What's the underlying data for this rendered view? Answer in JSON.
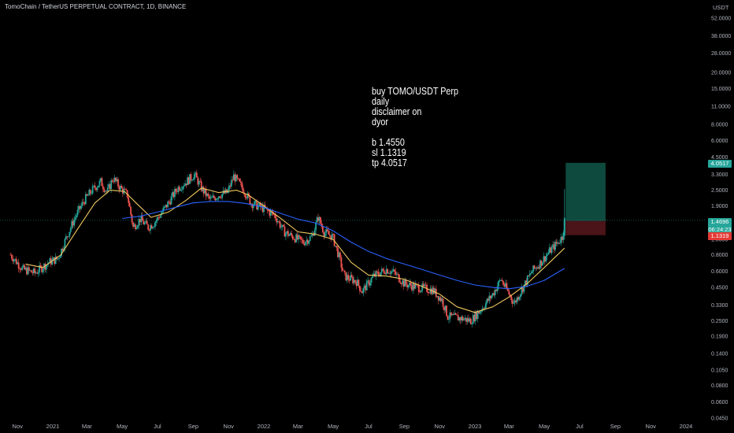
{
  "header": {
    "title": "TomoChain / TetherUS PERPETUAL CONTRACT, 1D, BINANCE"
  },
  "note": {
    "lines": [
      "buy TOMO/USDT Perp",
      "daily",
      "disclaimer on",
      "dyor",
      "",
      "b 1.4550",
      "sl 1.1319",
      "tp 4.0517"
    ]
  },
  "price_tags": {
    "tp": "4.0517",
    "last": "1.4696",
    "countdown": "06:24:23",
    "sl": "1.1319"
  },
  "colors": {
    "background": "#000000",
    "up_candle": "#26a69a",
    "down_candle": "#ef5350",
    "ma_fast": "#f0c75e",
    "ma_slow": "#2962ff",
    "profit_zone": "#0e4a3e",
    "loss_zone": "#4a1418",
    "last_price_line": "#26a69a"
  },
  "chart_data": {
    "type": "candlestick",
    "title": "TomoChain / TetherUS PERPETUAL CONTRACT, 1D, BINANCE",
    "ylabel": "USDT",
    "yscale": "log",
    "ylim": [
      0.04,
      60
    ],
    "y_ticks": [
      "52.0000",
      "38.0000",
      "28.0000",
      "20.0000",
      "15.0000",
      "11.0000",
      "8.0000",
      "6.0000",
      "4.5000",
      "3.3000",
      "2.5000",
      "1.9000",
      "1.4000",
      "1.0500",
      "0.8000",
      "0.6000",
      "0.4500",
      "0.3300",
      "0.2500",
      "0.1900",
      "0.1400",
      "0.1050",
      "0.0800",
      "0.0600",
      "0.0450"
    ],
    "x_ticks": [
      "Nov",
      "2021",
      "Mar",
      "May",
      "Jul",
      "Sep",
      "Nov",
      "2022",
      "Mar",
      "May",
      "Jul",
      "Sep",
      "Nov",
      "2023",
      "Mar",
      "May",
      "Jul",
      "Sep",
      "Nov",
      "2024"
    ],
    "x_tick_dates": [
      "2020-11-01",
      "2021-01-01",
      "2021-03-01",
      "2021-05-01",
      "2021-07-01",
      "2021-09-01",
      "2021-11-01",
      "2022-01-01",
      "2022-03-01",
      "2022-05-01",
      "2022-07-01",
      "2022-09-01",
      "2022-11-01",
      "2023-01-01",
      "2023-03-01",
      "2023-05-01",
      "2023-07-01",
      "2023-09-01",
      "2023-11-01",
      "2024-01-01"
    ],
    "price_path": [
      [
        "2020-10-20",
        0.8
      ],
      [
        "2020-11-10",
        0.62
      ],
      [
        "2020-12-01",
        0.58
      ],
      [
        "2020-12-25",
        0.7
      ],
      [
        "2021-01-10",
        0.75
      ],
      [
        "2021-01-25",
        1.1
      ],
      [
        "2021-02-10",
        1.6
      ],
      [
        "2021-02-25",
        2.1
      ],
      [
        "2021-03-10",
        2.5
      ],
      [
        "2021-03-25",
        2.9
      ],
      [
        "2021-04-05",
        2.4
      ],
      [
        "2021-04-15",
        3.1
      ],
      [
        "2021-04-28",
        2.6
      ],
      [
        "2021-05-10",
        2.3
      ],
      [
        "2021-05-20",
        1.3
      ],
      [
        "2021-06-01",
        1.5
      ],
      [
        "2021-06-15",
        1.3
      ],
      [
        "2021-06-25",
        1.4
      ],
      [
        "2021-07-05",
        1.6
      ],
      [
        "2021-07-20",
        2.0
      ],
      [
        "2021-08-05",
        2.6
      ],
      [
        "2021-08-20",
        2.9
      ],
      [
        "2021-09-03",
        3.3
      ],
      [
        "2021-09-15",
        2.6
      ],
      [
        "2021-09-30",
        2.1
      ],
      [
        "2021-10-15",
        2.3
      ],
      [
        "2021-10-30",
        2.4
      ],
      [
        "2021-11-10",
        3.2
      ],
      [
        "2021-11-25",
        2.6
      ],
      [
        "2021-12-10",
        2.0
      ],
      [
        "2022-01-01",
        1.8
      ],
      [
        "2022-01-20",
        1.6
      ],
      [
        "2022-02-05",
        1.2
      ],
      [
        "2022-02-20",
        1.1
      ],
      [
        "2022-03-10",
        1.0
      ],
      [
        "2022-03-25",
        1.1
      ],
      [
        "2022-04-05",
        1.55
      ],
      [
        "2022-04-15",
        1.2
      ],
      [
        "2022-04-30",
        1.1
      ],
      [
        "2022-05-10",
        0.8
      ],
      [
        "2022-05-20",
        0.55
      ],
      [
        "2022-06-10",
        0.5
      ],
      [
        "2022-06-20",
        0.42
      ],
      [
        "2022-07-10",
        0.55
      ],
      [
        "2022-08-01",
        0.62
      ],
      [
        "2022-08-15",
        0.58
      ],
      [
        "2022-09-01",
        0.48
      ],
      [
        "2022-09-25",
        0.45
      ],
      [
        "2022-10-20",
        0.43
      ],
      [
        "2022-11-05",
        0.36
      ],
      [
        "2022-11-15",
        0.27
      ],
      [
        "2022-12-10",
        0.26
      ],
      [
        "2022-12-25",
        0.25
      ],
      [
        "2023-01-10",
        0.3
      ],
      [
        "2023-02-01",
        0.4
      ],
      [
        "2023-02-15",
        0.52
      ],
      [
        "2023-03-10",
        0.34
      ],
      [
        "2023-03-25",
        0.45
      ],
      [
        "2023-04-10",
        0.6
      ],
      [
        "2023-04-25",
        0.7
      ],
      [
        "2023-05-10",
        0.85
      ],
      [
        "2023-05-25",
        1.0
      ],
      [
        "2023-06-01",
        1.1
      ],
      [
        "2023-06-05",
        1.47
      ]
    ],
    "series": [
      {
        "points": [
          [
            "2020-11-15",
            0.68
          ],
          [
            "2020-12-15",
            0.64
          ],
          [
            "2021-01-15",
            0.8
          ],
          [
            "2021-02-15",
            1.3
          ],
          [
            "2021-03-15",
            2.0
          ],
          [
            "2021-04-10",
            2.5
          ],
          [
            "2021-05-05",
            2.45
          ],
          [
            "2021-05-25",
            2.0
          ],
          [
            "2021-06-20",
            1.55
          ],
          [
            "2021-07-20",
            1.7
          ],
          [
            "2021-08-20",
            2.1
          ],
          [
            "2021-09-15",
            2.6
          ],
          [
            "2021-10-15",
            2.4
          ],
          [
            "2021-11-15",
            2.5
          ],
          [
            "2021-12-05",
            2.3
          ],
          [
            "2022-01-01",
            1.9
          ],
          [
            "2022-02-01",
            1.5
          ],
          [
            "2022-03-01",
            1.2
          ],
          [
            "2022-04-01",
            1.15
          ],
          [
            "2022-05-01",
            1.05
          ],
          [
            "2022-06-01",
            0.7
          ],
          [
            "2022-07-01",
            0.56
          ],
          [
            "2022-08-01",
            0.55
          ],
          [
            "2022-09-01",
            0.52
          ],
          [
            "2022-10-01",
            0.46
          ],
          [
            "2022-11-01",
            0.4
          ],
          [
            "2022-12-01",
            0.32
          ],
          [
            "2023-01-01",
            0.29
          ],
          [
            "2023-02-01",
            0.32
          ],
          [
            "2023-03-01",
            0.38
          ],
          [
            "2023-04-01",
            0.48
          ],
          [
            "2023-05-01",
            0.64
          ],
          [
            "2023-06-05",
            0.9
          ]
        ]
      },
      {
        "points": [
          [
            "2021-05-01",
            1.52
          ],
          [
            "2021-06-01",
            1.58
          ],
          [
            "2021-07-01",
            1.7
          ],
          [
            "2021-08-01",
            1.85
          ],
          [
            "2021-09-01",
            2.0
          ],
          [
            "2021-10-01",
            2.05
          ],
          [
            "2021-11-01",
            2.05
          ],
          [
            "2021-12-01",
            1.98
          ],
          [
            "2022-01-01",
            1.85
          ],
          [
            "2022-02-01",
            1.65
          ],
          [
            "2022-03-01",
            1.5
          ],
          [
            "2022-04-01",
            1.4
          ],
          [
            "2022-05-01",
            1.22
          ],
          [
            "2022-06-01",
            1.0
          ],
          [
            "2022-07-01",
            0.85
          ],
          [
            "2022-08-01",
            0.75
          ],
          [
            "2022-09-01",
            0.68
          ],
          [
            "2022-10-01",
            0.62
          ],
          [
            "2022-11-01",
            0.56
          ],
          [
            "2022-12-01",
            0.51
          ],
          [
            "2023-01-01",
            0.47
          ],
          [
            "2023-02-01",
            0.45
          ],
          [
            "2023-03-01",
            0.44
          ],
          [
            "2023-04-01",
            0.46
          ],
          [
            "2023-05-01",
            0.51
          ],
          [
            "2023-06-05",
            0.63
          ]
        ]
      }
    ],
    "position": {
      "entry": 1.455,
      "stop_loss": 1.1319,
      "take_profit": 4.0517,
      "start": "2023-06-07",
      "end": "2023-08-15"
    },
    "last_price": 1.4696
  }
}
